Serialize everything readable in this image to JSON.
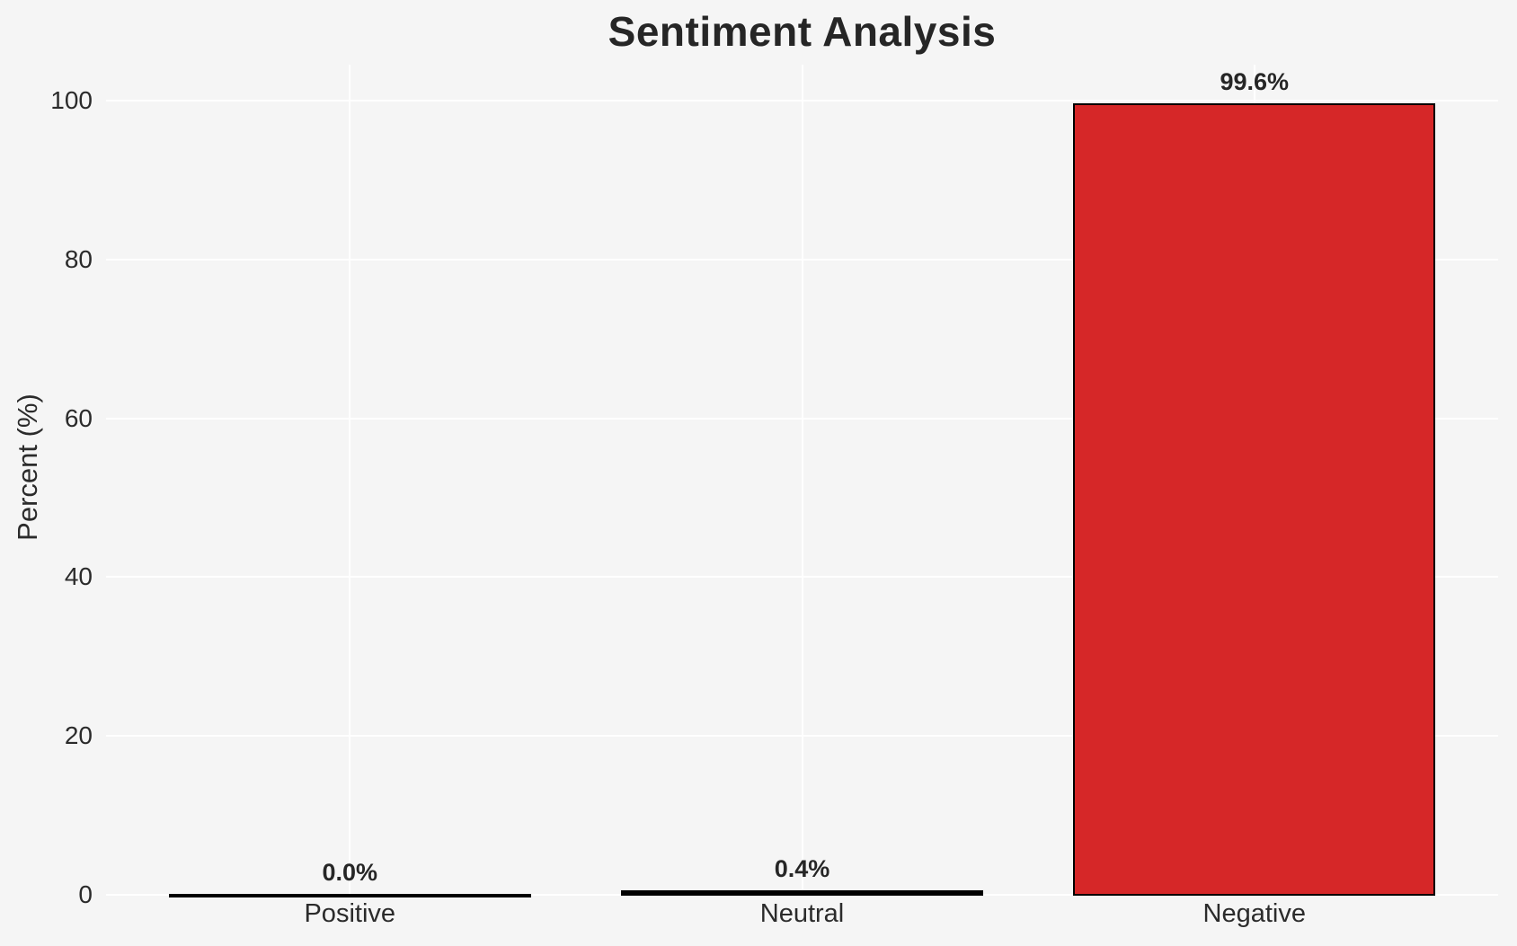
{
  "chart_data": {
    "type": "bar",
    "title": "Sentiment Analysis",
    "xlabel": "",
    "ylabel": "Percent (%)",
    "categories": [
      "Positive",
      "Neutral",
      "Negative"
    ],
    "values": [
      0.0,
      0.4,
      99.6
    ],
    "value_labels": [
      "0.0%",
      "0.4%",
      "99.6%"
    ],
    "yticks": [
      0,
      20,
      40,
      60,
      80,
      100
    ],
    "ylim": [
      0,
      100
    ],
    "grid": "on",
    "legend": "none",
    "colors": {
      "bar_fills": [
        "#000000",
        "#000000",
        "#d62728"
      ],
      "bar_edge": "#000000",
      "background": "#f5f5f5",
      "gridline": "#ffffff",
      "text": "#2b2b2b"
    }
  }
}
